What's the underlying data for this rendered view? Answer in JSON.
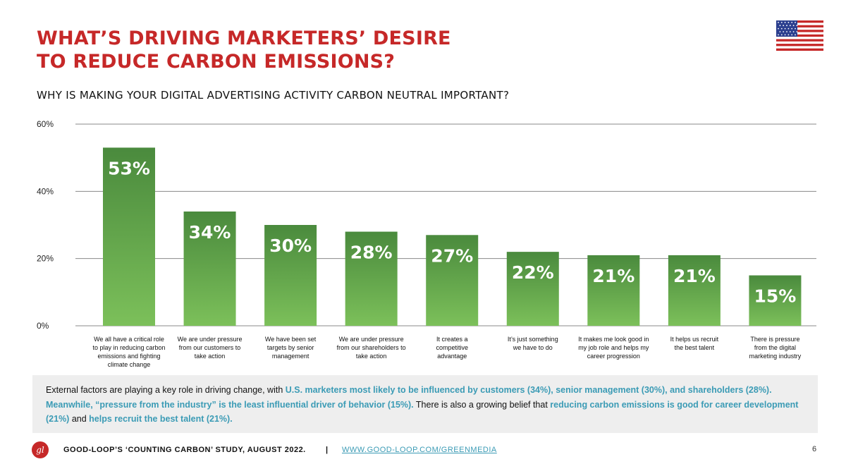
{
  "header": {
    "title_line1": "WHAT’S DRIVING MARKETERS’ DESIRE",
    "title_line2": "TO REDUCE CARBON EMISSIONS?",
    "flag_icon": "us-flag-icon"
  },
  "colors": {
    "title": "#c62828",
    "bar_top": "#4a8a3d",
    "bar_bottom": "#7cc05a",
    "highlight": "#3b9bb5"
  },
  "chart_data": {
    "type": "bar",
    "title": "WHY IS MAKING YOUR DIGITAL ADVERTISING ACTIVITY CARBON NEUTRAL IMPORTANT?",
    "xlabel": "",
    "ylabel": "",
    "ylim": [
      0,
      60
    ],
    "yticks": [
      0,
      20,
      40,
      60
    ],
    "ytick_labels": [
      "0%",
      "20%",
      "40%",
      "60%"
    ],
    "grid": true,
    "categories": [
      [
        "We all have a critical role",
        "to play in reducing carbon",
        "emissions and fighting",
        "climate change"
      ],
      [
        "We are under pressure",
        "from our customers to",
        "take action"
      ],
      [
        "We have been set",
        "targets by senior",
        "management"
      ],
      [
        "We are under pressure",
        "from our shareholders to",
        "take action"
      ],
      [
        "It creates a",
        "competitive",
        "advantage"
      ],
      [
        "It’s just something",
        "we have to do"
      ],
      [
        "It makes me look good in",
        "my job role and helps my",
        "career progression"
      ],
      [
        "It helps us recruit",
        "the best talent"
      ],
      [
        "There is pressure",
        "from the digital",
        "marketing industry"
      ]
    ],
    "values": [
      53,
      34,
      30,
      28,
      27,
      22,
      21,
      21,
      15
    ],
    "data_labels": [
      "53%",
      "34%",
      "30%",
      "28%",
      "27%",
      "22%",
      "21%",
      "21%",
      "15%"
    ]
  },
  "note": {
    "t1": "External factors are playing a key role in driving change, with ",
    "h1": "U.S. marketers most likely to be influenced by customers (34%), senior management (30%), and shareholders (28%). Meanwhile, “pressure from the industry” is the least influential driver of behavior (15%).",
    "t2": " There is also a growing belief that ",
    "h2": "reducing carbon emissions is good for career development (21%)",
    "t3": " and ",
    "h3": "helps recruit the best talent (21%)."
  },
  "footer": {
    "logo_text": "gl",
    "study": "GOOD-LOOP’S ‘COUNTING CARBON’ STUDY, AUGUST 2022.",
    "separator": "|",
    "link": "WWW.GOOD-LOOP.COM/GREENMEDIA",
    "page_number": "6"
  }
}
